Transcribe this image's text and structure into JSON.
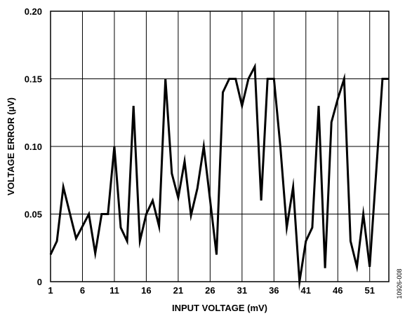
{
  "chart_data": {
    "type": "line",
    "title": "",
    "xlabel": "INPUT VOLTAGE (mV)",
    "ylabel": "VOLTAGE ERROR (µV)",
    "xlim": [
      1,
      54
    ],
    "ylim": [
      0,
      0.2
    ],
    "xticks": [
      1,
      6,
      11,
      16,
      21,
      26,
      31,
      36,
      41,
      46,
      51
    ],
    "xtick_labels": [
      "1",
      "6",
      "11",
      "16",
      "21",
      "26",
      "31",
      "36",
      "41",
      "46",
      "51"
    ],
    "yticks": [
      0,
      0.05,
      0.1,
      0.15,
      0.2
    ],
    "ytick_labels": [
      "0",
      "0.05",
      "0.10",
      "0.15",
      "0.20"
    ],
    "grid": true,
    "line_color": "#000000",
    "series": [
      {
        "name": "",
        "x": [
          1,
          2,
          3,
          4,
          5,
          6,
          7,
          8,
          9,
          10,
          11,
          12,
          13,
          14,
          15,
          16,
          17,
          18,
          19,
          20,
          21,
          22,
          23,
          24,
          25,
          26,
          27,
          28,
          29,
          30,
          31,
          32,
          33,
          34,
          35,
          36,
          37,
          38,
          39,
          40,
          41,
          42,
          43,
          44,
          45,
          46,
          47,
          48,
          49,
          50,
          51,
          52,
          53,
          54
        ],
        "values": [
          0.02,
          0.03,
          0.07,
          0.051,
          0.032,
          0.041,
          0.05,
          0.021,
          0.05,
          0.05,
          0.1,
          0.04,
          0.03,
          0.13,
          0.03,
          0.05,
          0.06,
          0.041,
          0.15,
          0.08,
          0.062,
          0.089,
          0.049,
          0.069,
          0.1,
          0.06,
          0.02,
          0.14,
          0.15,
          0.15,
          0.13,
          0.15,
          0.159,
          0.06,
          0.15,
          0.15,
          0.1,
          0.04,
          0.07,
          0.0,
          0.03,
          0.04,
          0.13,
          0.01,
          0.118,
          0.135,
          0.15,
          0.03,
          0.011,
          0.05,
          0.011,
          0.08,
          0.15,
          0.15
        ]
      }
    ]
  },
  "figure_id": "10926-008"
}
